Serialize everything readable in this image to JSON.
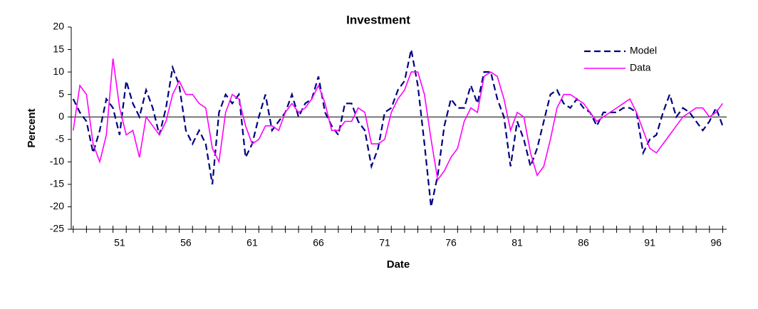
{
  "chart_data": {
    "type": "line",
    "title": "Investment",
    "x_label": "Date",
    "y_label": "Percent",
    "x": [
      47.5,
      48,
      48.5,
      49,
      49.5,
      50,
      50.5,
      51,
      51.5,
      52,
      52.5,
      53,
      53.5,
      54,
      54.5,
      55,
      55.5,
      56,
      56.5,
      57,
      57.5,
      58,
      58.5,
      59,
      59.5,
      60,
      60.5,
      61,
      61.5,
      62,
      62.5,
      63,
      63.5,
      64,
      64.5,
      65,
      65.5,
      66,
      66.5,
      67,
      67.5,
      68,
      68.5,
      69,
      69.5,
      70,
      70.5,
      71,
      71.5,
      72,
      72.5,
      73,
      73.5,
      74,
      74.5,
      75,
      75.5,
      76,
      76.5,
      77,
      77.5,
      78,
      78.5,
      79,
      79.5,
      80,
      80.5,
      81,
      81.5,
      82,
      82.5,
      83,
      83.5,
      84,
      84.5,
      85,
      85.5,
      86,
      86.5,
      87,
      87.5,
      88,
      88.5,
      89,
      89.5,
      90,
      90.5,
      91,
      91.5,
      92,
      92.5,
      93,
      93.5,
      94,
      94.5,
      95,
      95.5,
      96,
      96.5
    ],
    "series": [
      {
        "name": "Model",
        "color": "#000080",
        "dashed": true,
        "values": [
          4,
          1,
          -1,
          -8,
          -3,
          4,
          2,
          -4,
          8,
          3,
          0,
          6,
          2,
          -4,
          2,
          11,
          7,
          -3,
          -6,
          -3,
          -6,
          -15,
          1,
          5,
          3,
          5,
          -9,
          -6,
          0,
          5,
          -3,
          -1,
          1,
          5,
          0,
          3,
          4,
          9,
          1,
          -2,
          -4,
          3,
          3,
          -1,
          -3,
          -11,
          -7,
          1,
          2,
          6,
          8,
          15,
          7,
          -6,
          -20,
          -13,
          -2,
          4,
          2,
          2,
          7,
          3,
          10,
          10,
          4,
          0,
          -11,
          -1,
          -5,
          -11,
          -7,
          -1,
          5,
          6,
          3,
          2,
          4,
          2,
          1,
          -2,
          1,
          1,
          1,
          2,
          2,
          1,
          -8,
          -5,
          -4,
          1,
          5,
          0,
          2,
          1,
          -1,
          -3,
          -1,
          2,
          -2
        ]
      },
      {
        "name": "Data",
        "color": "#ff00ff",
        "dashed": false,
        "values": [
          -3,
          7,
          5,
          -6,
          -10,
          -4,
          13,
          2,
          -4,
          -3,
          -9,
          0,
          -2,
          -4,
          -1,
          5,
          8,
          5,
          5,
          3,
          2,
          -7,
          -10,
          1,
          5,
          4,
          -2,
          -6,
          -5,
          -2,
          -2,
          -3,
          1,
          3,
          1,
          2,
          4,
          7,
          3,
          -3,
          -3,
          -1,
          -1,
          2,
          1,
          -6,
          -6,
          -5,
          1,
          4,
          6,
          10,
          10,
          5,
          -5,
          -14,
          -12,
          -9,
          -7,
          -1,
          2,
          1,
          9,
          10,
          9,
          4,
          -3,
          1,
          0,
          -8,
          -13,
          -11,
          -5,
          2,
          5,
          5,
          4,
          3,
          1,
          -1,
          0,
          1,
          2,
          3,
          4,
          1,
          -3,
          -7,
          -8,
          -6,
          -4,
          -2,
          0,
          1,
          2,
          2,
          0,
          1,
          3
        ]
      }
    ],
    "xlim": [
      47.35,
      96.8
    ],
    "xticks": [
      51,
      56,
      61,
      66,
      71,
      76,
      81,
      86,
      91,
      96
    ],
    "ylim": [
      -25,
      20
    ],
    "yticks": [
      -25,
      -20,
      -15,
      -10,
      -5,
      0,
      5,
      10,
      15,
      20
    ],
    "legend": "upper right"
  }
}
